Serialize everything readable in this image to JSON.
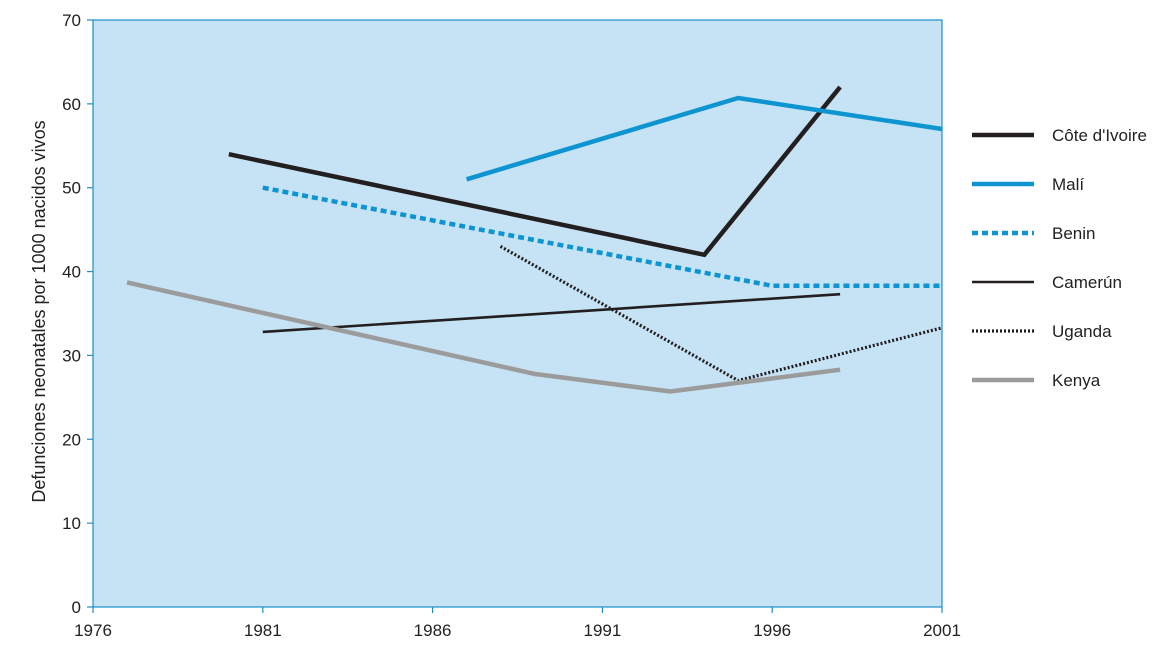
{
  "chart_data": {
    "type": "line",
    "title": "",
    "xlabel": "",
    "ylabel": "Defunciones neonatales por 1000 nacidos vivos",
    "xlim": [
      1976,
      2001
    ],
    "ylim": [
      0,
      70
    ],
    "x_ticks": [
      "1976",
      "1981",
      "1986",
      "1991",
      "1996",
      "2001"
    ],
    "y_ticks": [
      "0",
      "10",
      "20",
      "30",
      "40",
      "50",
      "60",
      "70"
    ],
    "grid": false,
    "background_color": "#c5e3f4",
    "legend_position": "right",
    "series": [
      {
        "name": "Côte d'Ivoire",
        "color": "#231f20",
        "style": "solid-thick",
        "points": [
          [
            1980,
            54
          ],
          [
            1994,
            42
          ],
          [
            1998,
            62
          ]
        ]
      },
      {
        "name": "Malí",
        "color": "#0f94d2",
        "style": "solid-thick",
        "points": [
          [
            1987,
            51
          ],
          [
            1995,
            60.7
          ],
          [
            2001,
            57
          ]
        ]
      },
      {
        "name": "Benin",
        "color": "#0f94d2",
        "style": "dotted-thick",
        "points": [
          [
            1981,
            50
          ],
          [
            1996,
            38.3
          ],
          [
            2001,
            38.3
          ]
        ]
      },
      {
        "name": "Camerún",
        "color": "#231f20",
        "style": "solid-thin",
        "points": [
          [
            1981,
            32.8
          ],
          [
            1998,
            37.3
          ]
        ]
      },
      {
        "name": "Uganda",
        "color": "#231f20",
        "style": "dotted-thin",
        "points": [
          [
            1988,
            43
          ],
          [
            1995,
            27
          ],
          [
            2001,
            33.3
          ]
        ]
      },
      {
        "name": "Kenya",
        "color": "#9b9b9b",
        "style": "solid-thick",
        "points": [
          [
            1977,
            38.7
          ],
          [
            1989,
            27.8
          ],
          [
            1993,
            25.7
          ],
          [
            1998,
            28.3
          ]
        ]
      }
    ]
  }
}
